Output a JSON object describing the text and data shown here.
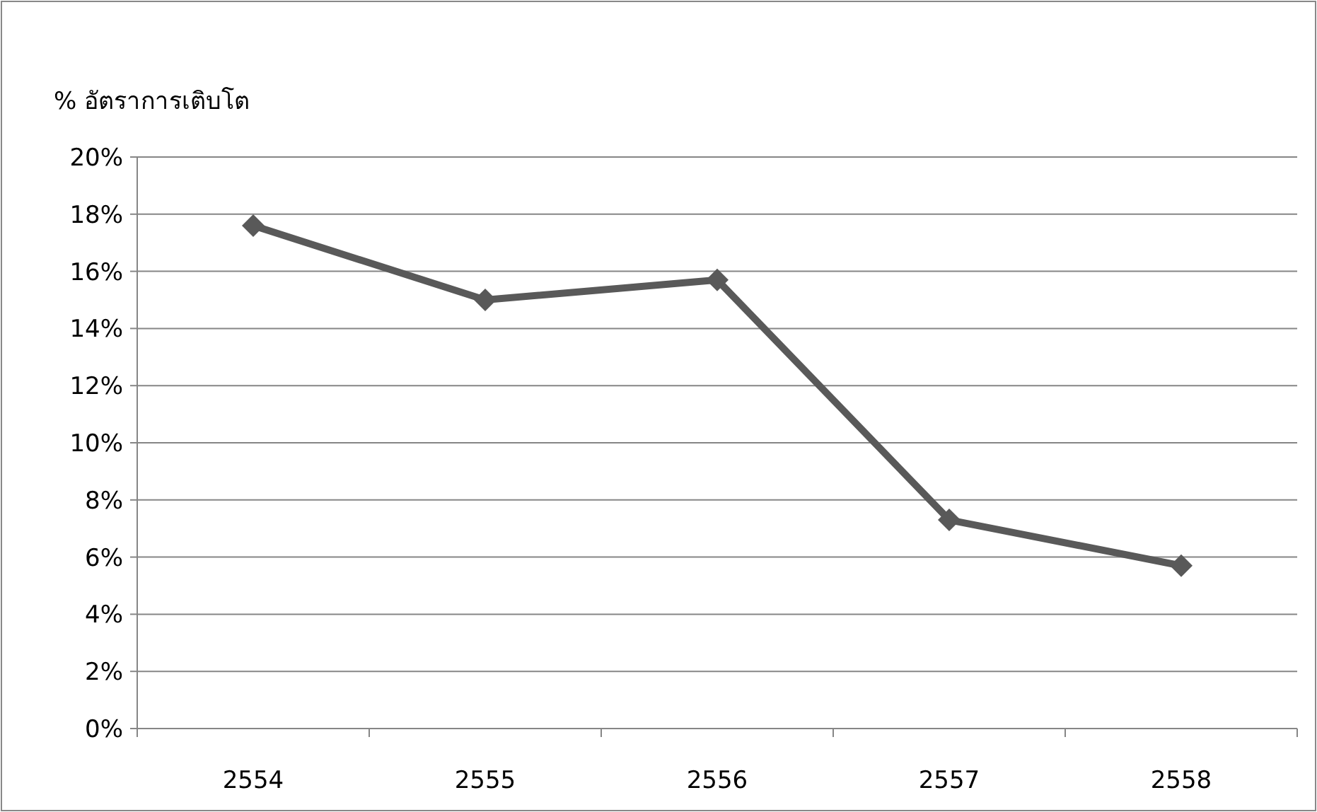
{
  "chart_data": {
    "type": "line",
    "ylabel": "% อัตราการเติบโต",
    "categories": [
      "2554",
      "2555",
      "2556",
      "2557",
      "2558"
    ],
    "series": [
      {
        "color": "#595959",
        "values": [
          17.6,
          15.0,
          15.7,
          7.3,
          5.7
        ]
      }
    ],
    "ylim": [
      0,
      20
    ],
    "yticks": [
      {
        "value": 0,
        "label": "0%"
      },
      {
        "value": 2,
        "label": "2%"
      },
      {
        "value": 4,
        "label": "4%"
      },
      {
        "value": 6,
        "label": "6%"
      },
      {
        "value": 8,
        "label": "8%"
      },
      {
        "value": 10,
        "label": "10%"
      },
      {
        "value": 12,
        "label": "12%"
      },
      {
        "value": 14,
        "label": "14%"
      },
      {
        "value": 16,
        "label": "16%"
      },
      {
        "value": 18,
        "label": "18%"
      },
      {
        "value": 20,
        "label": "20%"
      }
    ],
    "grid": "y",
    "marker": "diamond",
    "line_style": "solid"
  }
}
